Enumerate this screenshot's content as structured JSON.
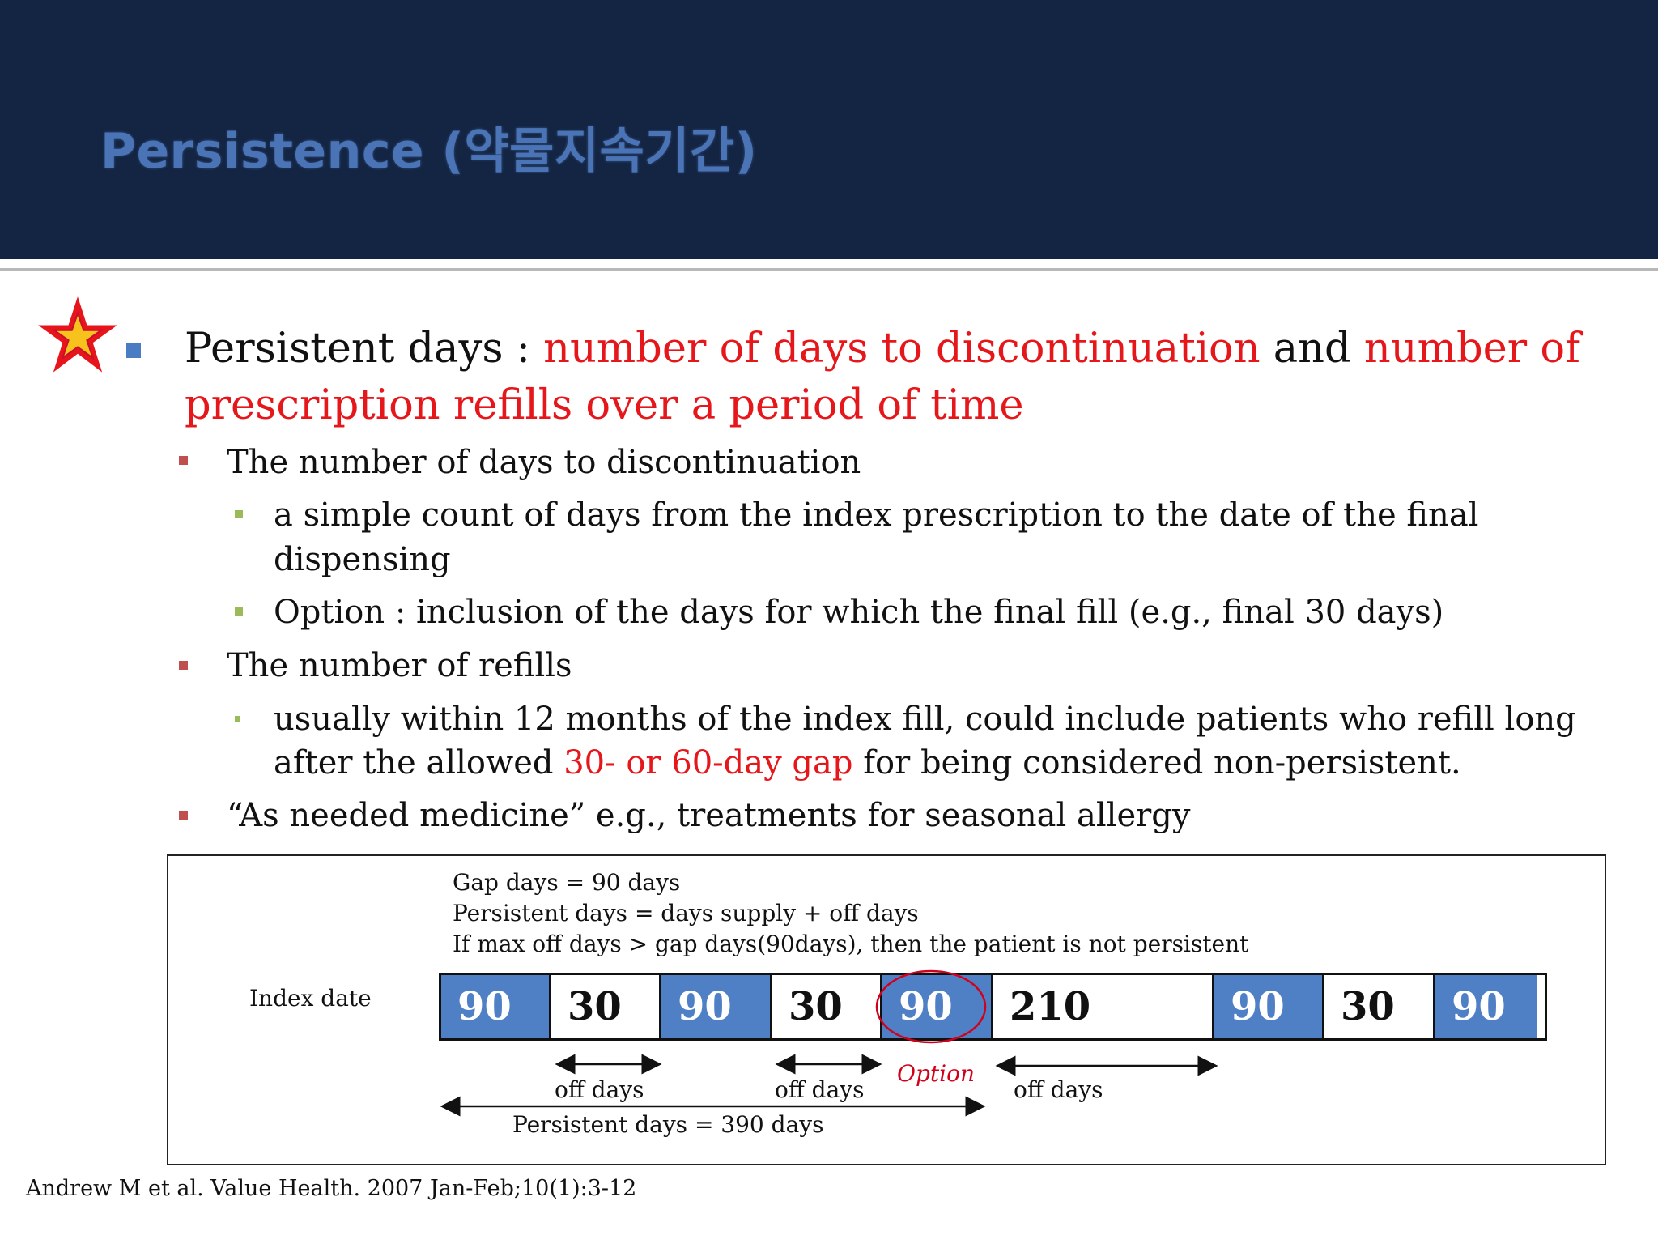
{
  "header": {
    "title": "Persistence (약물지속기간)",
    "background_color": "#142543",
    "title_color": "#4a74b6"
  },
  "main_bullet": {
    "marker_icon": "star-icon",
    "prefix": "Persistent days : ",
    "highlight1": "number of days to discontinuation",
    "connector": " and ",
    "highlight2_line1": "number of",
    "highlight2_line2": "prescription refills over a period of time"
  },
  "sub_bullets": [
    {
      "text": "The number of days to discontinuation",
      "children": [
        {
          "line1": "a simple count of days from the index prescription to the date of the final",
          "line2": "dispensing"
        },
        {
          "line1": "Option : inclusion of the days for which the final fill (e.g., final 30 days)"
        }
      ]
    },
    {
      "text": "The number of refills",
      "children": [
        {
          "line1": " usually within 12 months of the index fill, could include patients who refill long",
          "line2_pre": "after the allowed ",
          "line2_red": "30- or 60-day gap",
          "line2_post": " for being considered non-persistent."
        }
      ]
    },
    {
      "text": "“As needed medicine” e.g., treatments for seasonal allergy"
    }
  ],
  "diagram": {
    "notes": [
      "Gap days = 90 days",
      "Persistent days =  days supply + off days",
      "If max off days > gap days(90days), then the patient is not persistent"
    ],
    "index_label": "Index date",
    "segments": [
      {
        "label": "90",
        "kind": "supply"
      },
      {
        "label": "30",
        "kind": "off"
      },
      {
        "label": "90",
        "kind": "supply"
      },
      {
        "label": "30",
        "kind": "off"
      },
      {
        "label": "90",
        "kind": "supply"
      },
      {
        "label": "210",
        "kind": "off"
      },
      {
        "label": "90",
        "kind": "supply"
      },
      {
        "label": "30",
        "kind": "off"
      },
      {
        "label": "90",
        "kind": "supply"
      }
    ],
    "off_days_label": "off days",
    "option_label": "Option",
    "persistent_label": "Persistent days = 390 days",
    "supply_color": "#4f7fc4",
    "highlight_color": "#d0021b"
  },
  "citation": "Andrew M et al. Value Health. 2007 Jan-Feb;10(1):3-12"
}
